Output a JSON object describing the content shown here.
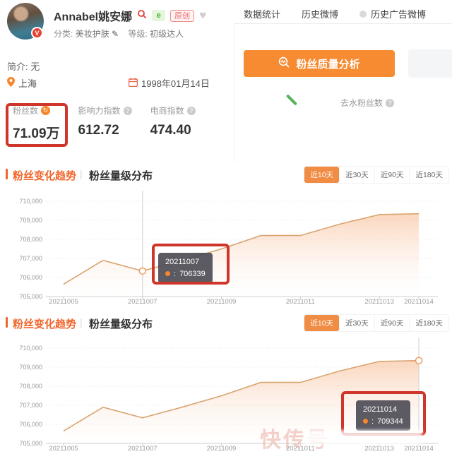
{
  "profile": {
    "name": "Annabel姚安娜",
    "original_badge": "原创",
    "category_label": "分类:",
    "category": "美妆护肤",
    "level_label": "等级:",
    "level": "初级达人",
    "bio": "简介: 无",
    "location": "上海",
    "birthday": "1998年01月14日",
    "verified_glyph": "V",
    "ecommerce_badge_glyph": "e",
    "stats": [
      {
        "label": "粉丝数",
        "value": "71.09万"
      },
      {
        "label": "影响力指数",
        "value": "612.72"
      },
      {
        "label": "电商指数",
        "value": "474.40"
      }
    ]
  },
  "nav": {
    "tabs": [
      {
        "label": "数据统计"
      },
      {
        "label": "历史微博"
      },
      {
        "label": "历史广告微博"
      }
    ]
  },
  "actions": {
    "analyze_button": "粉丝质量分析",
    "dewater_label": "去水粉丝数"
  },
  "section_header": {
    "trend": "粉丝变化趋势",
    "divider": "|",
    "distribution": "粉丝量级分布"
  },
  "ranges": [
    {
      "label": "近10天",
      "active": true
    },
    {
      "label": "近30天",
      "active": false
    },
    {
      "label": "近90天",
      "active": false
    },
    {
      "label": "近180天",
      "active": false
    }
  ],
  "watermark": "快传号",
  "chart_data": [
    {
      "type": "area",
      "title": "粉丝变化趋势 (近10天)",
      "x": [
        "20211005",
        "20211006",
        "20211007",
        "20211008",
        "20211009",
        "20211010",
        "20211011",
        "20211012",
        "20211013",
        "20211014"
      ],
      "values": [
        705650,
        706900,
        706339,
        706900,
        707500,
        708200,
        708200,
        708800,
        709300,
        709344
      ],
      "ylim": [
        705000,
        710000
      ],
      "ytick_step": 1000,
      "xtick_labels": [
        "20211005",
        "20211007",
        "20211009",
        "20211011",
        "20211013",
        "20211014"
      ],
      "grid": true,
      "line_color": "#d9a36f",
      "highlight": {
        "index": 2
      },
      "tooltip": {
        "date": "20211007",
        "value": "706339"
      }
    },
    {
      "type": "area",
      "title": "粉丝变化趋势 (近10天)",
      "x": [
        "20211005",
        "20211006",
        "20211007",
        "20211008",
        "20211009",
        "20211010",
        "20211011",
        "20211012",
        "20211013",
        "20211014"
      ],
      "values": [
        705650,
        706900,
        706339,
        706900,
        707500,
        708200,
        708200,
        708800,
        709300,
        709344
      ],
      "ylim": [
        705000,
        710000
      ],
      "ytick_step": 1000,
      "xtick_labels": [
        "20211005",
        "20211007",
        "20211009",
        "20211011",
        "20211013",
        "20211014"
      ],
      "grid": true,
      "line_color": "#d9a36f",
      "highlight": {
        "index": 9
      },
      "tooltip": {
        "date": "20211014",
        "value": "709344"
      }
    }
  ]
}
